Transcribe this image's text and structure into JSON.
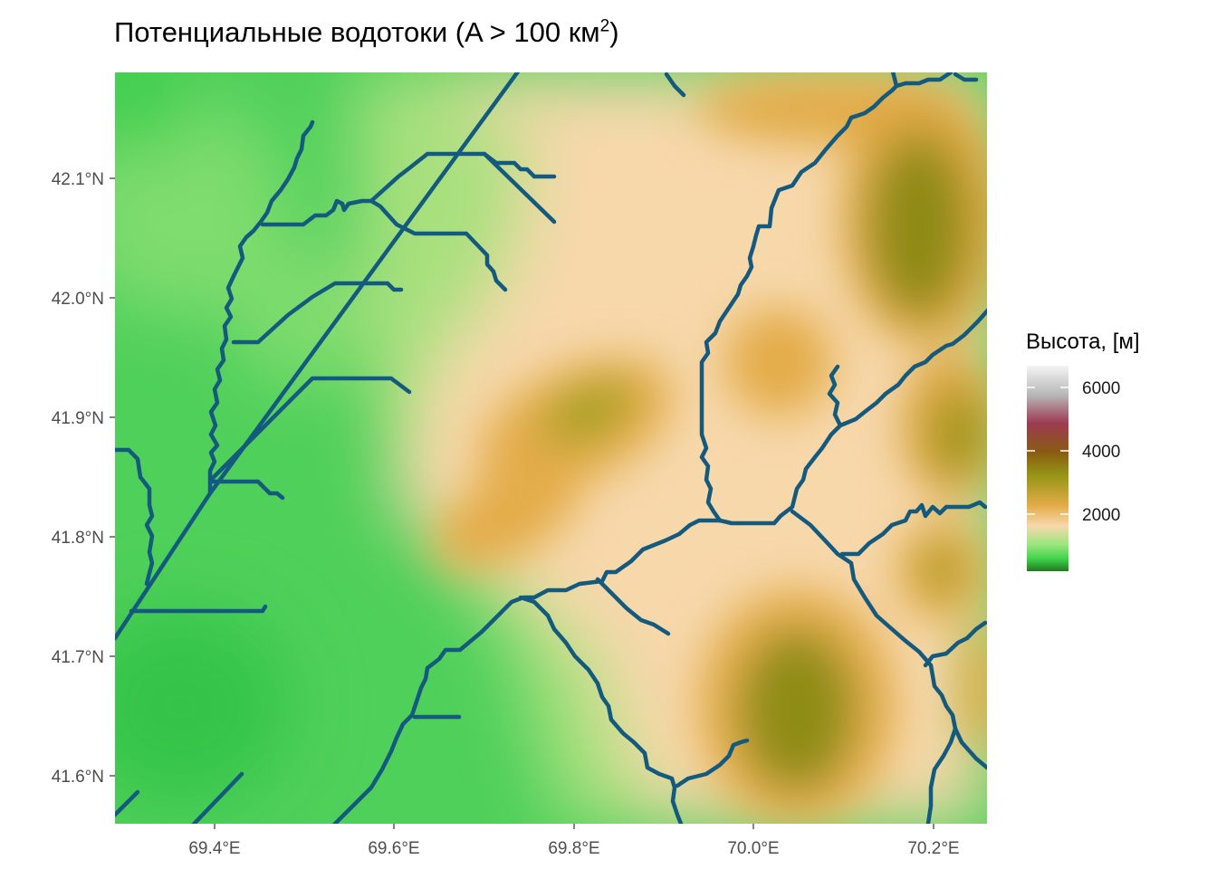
{
  "title": {
    "main": "Потенциальные водотоки (A > 100 км",
    "sup": "2",
    "close": ")"
  },
  "axes": {
    "x_ticks": [
      "69.4°E",
      "69.6°E",
      "69.8°E",
      "70.0°E",
      "70.2°E"
    ],
    "y_ticks": [
      "42.1°N",
      "42.0°N",
      "41.9°N",
      "41.8°N",
      "41.7°N",
      "41.6°N"
    ],
    "x_range": [
      69.28,
      70.25
    ],
    "y_range": [
      41.56,
      42.19
    ]
  },
  "legend": {
    "title": "Высота, [м]",
    "ticks": [
      "6000",
      "4000",
      "2000"
    ],
    "placement": "right",
    "colors": [
      "#1f7a1f",
      "#3fd24a",
      "#9be67f",
      "#f7d8ab",
      "#e3ac48",
      "#949415",
      "#8a5b12",
      "#9c3b52",
      "#b8b8b8",
      "#f4f4f4"
    ]
  },
  "colors": {
    "stream": "#135a7e",
    "lowland": "#3fd24a",
    "midland": "#f7d8ab",
    "highland": "#949415"
  }
}
